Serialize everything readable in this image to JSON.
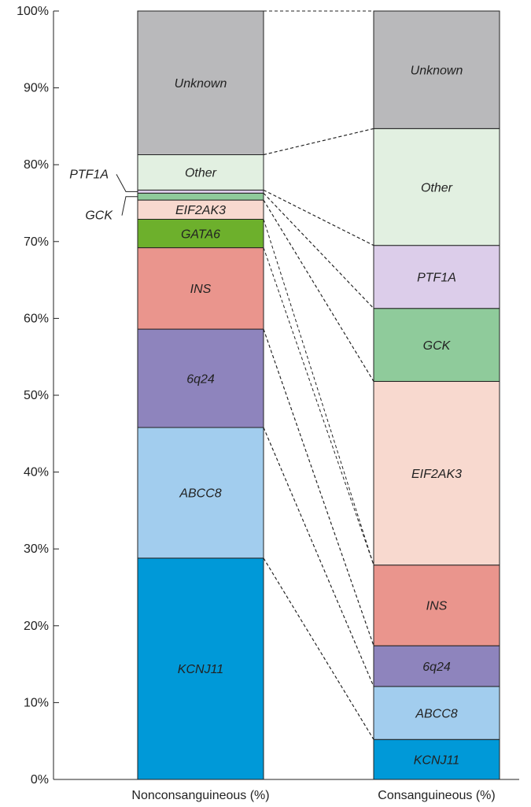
{
  "chart_data": {
    "type": "bar",
    "stacked": true,
    "categories": [
      "Nonconsanguineous (%)",
      "Consanguineous (%)"
    ],
    "ylim": [
      0,
      100
    ],
    "y_ticks": [
      "0%",
      "10%",
      "20%",
      "30%",
      "40%",
      "50%",
      "60%",
      "70%",
      "80%",
      "90%",
      "100%"
    ],
    "grid": false,
    "series": [
      {
        "name": "KCNJ11",
        "color": "#0099d8",
        "values": [
          28.8,
          5.2
        ]
      },
      {
        "name": "ABCC8",
        "color": "#a2cdee",
        "values": [
          17.0,
          6.9
        ]
      },
      {
        "name": "6q24",
        "color": "#8e84bd",
        "values": [
          12.8,
          5.3
        ]
      },
      {
        "name": "INS",
        "color": "#ea958d",
        "values": [
          10.6,
          10.5
        ]
      },
      {
        "name": "GATA6",
        "color": "#6db02c",
        "values": [
          3.7,
          0
        ]
      },
      {
        "name": "EIF2AK3",
        "color": "#f8d9cf",
        "values": [
          2.5,
          23.9
        ]
      },
      {
        "name": "GCK",
        "color": "#8fcb9b",
        "values": [
          0.9,
          9.5
        ]
      },
      {
        "name": "PTF1A",
        "color": "#dccdea",
        "values": [
          0.4,
          8.2
        ]
      },
      {
        "name": "Other",
        "color": "#e2f0e1",
        "values": [
          4.6,
          15.2
        ]
      },
      {
        "name": "Unknown",
        "color": "#b9b9bb",
        "values": [
          18.7,
          15.3
        ]
      }
    ],
    "external_labels": [
      "PTF1A",
      "GCK"
    ]
  }
}
